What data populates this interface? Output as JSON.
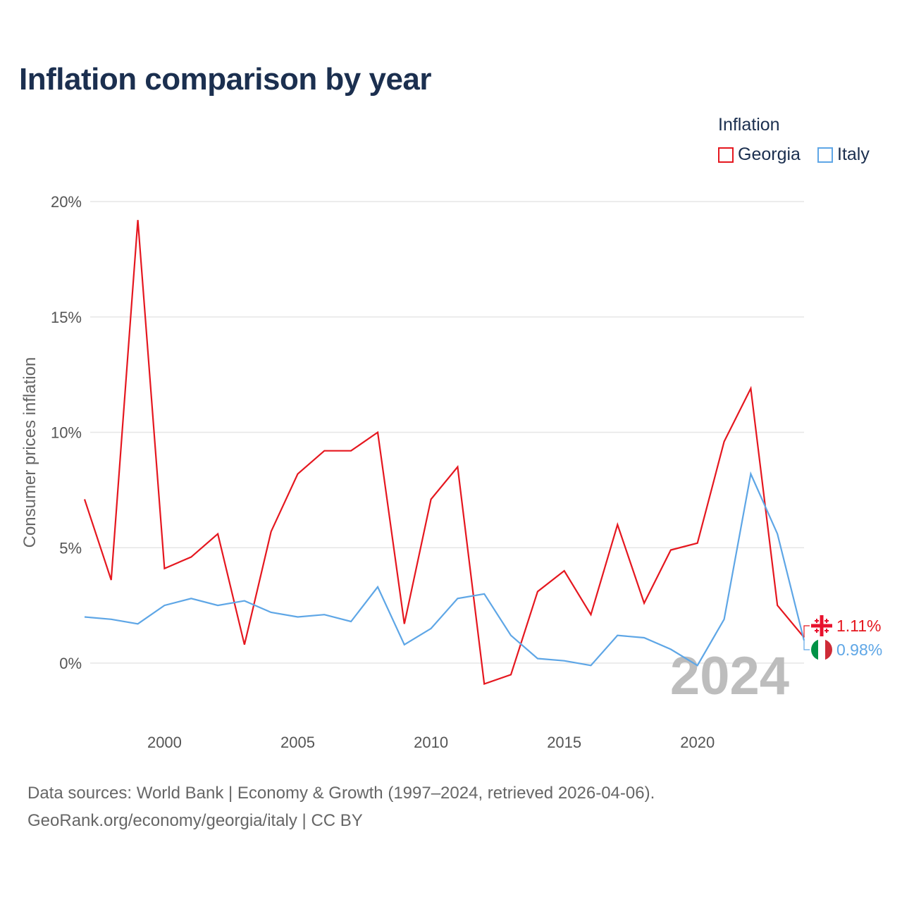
{
  "title": "Inflation comparison by year",
  "legend": {
    "title": "Inflation",
    "items": [
      {
        "name": "Georgia",
        "color": "#e5171f"
      },
      {
        "name": "Italy",
        "color": "#5ea6e6"
      }
    ]
  },
  "chart_data": {
    "type": "line",
    "title": "Inflation comparison by year",
    "xlabel": "",
    "ylabel": "Consumer prices inflation",
    "xlim": [
      1997,
      2024
    ],
    "ylim": [
      -2.5,
      20.5
    ],
    "y_ticks": [
      0,
      5,
      10,
      15,
      20
    ],
    "y_tick_labels": [
      "0%",
      "5%",
      "10%",
      "15%",
      "20%"
    ],
    "x_ticks": [
      2000,
      2005,
      2010,
      2015,
      2020
    ],
    "x_tick_labels": [
      "2000",
      "2005",
      "2010",
      "2015",
      "2020"
    ],
    "grid": true,
    "current_year_label": "2024",
    "x": [
      1997,
      1998,
      1999,
      2000,
      2001,
      2002,
      2003,
      2004,
      2005,
      2006,
      2007,
      2008,
      2009,
      2010,
      2011,
      2012,
      2013,
      2014,
      2015,
      2016,
      2017,
      2018,
      2019,
      2020,
      2021,
      2022,
      2023,
      2024
    ],
    "series": [
      {
        "name": "Georgia",
        "color": "#e5171f",
        "end_label": "1.11%",
        "flag": "georgia-flag-icon",
        "values": [
          7.1,
          3.6,
          19.2,
          4.1,
          4.6,
          5.6,
          0.8,
          5.7,
          8.2,
          9.2,
          9.2,
          10.0,
          1.7,
          7.1,
          8.5,
          -0.9,
          -0.5,
          3.1,
          4.0,
          2.1,
          6.0,
          2.6,
          4.9,
          5.2,
          9.6,
          11.9,
          2.5,
          1.11
        ]
      },
      {
        "name": "Italy",
        "color": "#5ea6e6",
        "end_label": "0.98%",
        "flag": "italy-flag-icon",
        "values": [
          2.0,
          1.9,
          1.7,
          2.5,
          2.8,
          2.5,
          2.7,
          2.2,
          2.0,
          2.1,
          1.8,
          3.3,
          0.8,
          1.5,
          2.8,
          3.0,
          1.2,
          0.2,
          0.1,
          -0.1,
          1.2,
          1.1,
          0.6,
          -0.1,
          1.9,
          8.2,
          5.6,
          0.98
        ]
      }
    ]
  },
  "source": {
    "line1": "Data sources: World Bank | Economy & Growth (1997–2024, retrieved 2026-04-06).",
    "line2": "GeoRank.org/economy/georgia/italy | CC BY"
  }
}
